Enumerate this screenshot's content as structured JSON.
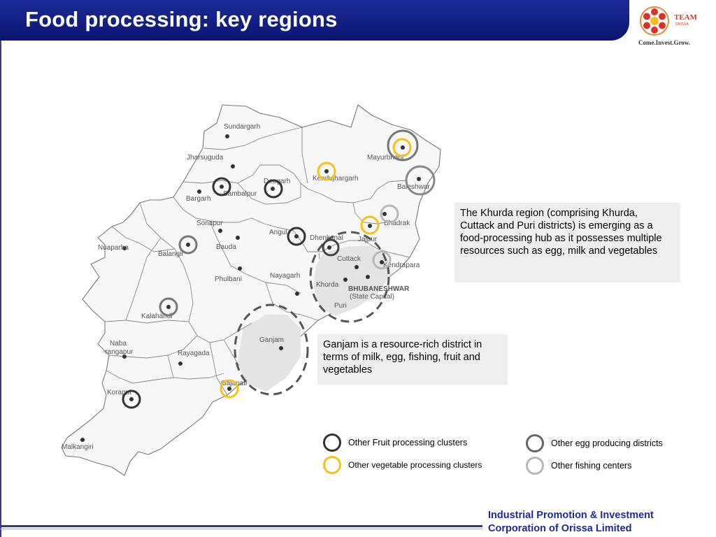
{
  "slide": {
    "title": "Food processing: key regions",
    "footer_line1": "Industrial Promotion & Investment",
    "footer_line2": "Corporation of Orissa Limited"
  },
  "logo": {
    "name": "TEAM",
    "subname": "ORISSA",
    "tagline": "Come.Invest.Grow."
  },
  "map": {
    "districts": [
      "Sundargarh",
      "Jharsuguda",
      "Deogarh",
      "Sambalpur",
      "Bargarh",
      "Mayurbhanj",
      "Kendujhargarh",
      "Baleshwar",
      "Bhadrak",
      "Sonapur",
      "Angul",
      "Dhenkanal",
      "Jajpur",
      "Nuaparha",
      "Balangir",
      "Bauda",
      "Cuttack",
      "Kendrapara",
      "Phulbani",
      "Nayagarh",
      "Khorda",
      "BHUBANESHWAR",
      "(State Capital)",
      "Puri",
      "Kalahandi",
      "Naba",
      "-rangapur",
      "Rayagada",
      "Ganjam",
      "Gajapati",
      "Koraput",
      "Malkangiri"
    ]
  },
  "callouts": {
    "khurda": "The Khurda region (comprising Khurda, Cuttack and Puri districts) is emerging as a food-processing hub as it possesses multiple resources such as egg, milk and vegetables",
    "ganjam": "Ganjam is a resource-rich district in terms of milk, egg, fishing, fruit and vegetables"
  },
  "legend": [
    {
      "label": "Other Fruit processing clusters",
      "color": "#333333"
    },
    {
      "label": "Other egg producing districts",
      "color": "#666666"
    },
    {
      "label": "Other vegetable processing clusters",
      "color": "#f2c21b"
    },
    {
      "label": "Other fishing centers",
      "color": "#b8b8b8"
    }
  ],
  "colors": {
    "title_bar": "#1c2a98",
    "fruit_ring": "#333333",
    "egg_ring": "#666666",
    "vegetable_ring": "#f2c21b",
    "fishing_ring": "#b8b8b8"
  }
}
